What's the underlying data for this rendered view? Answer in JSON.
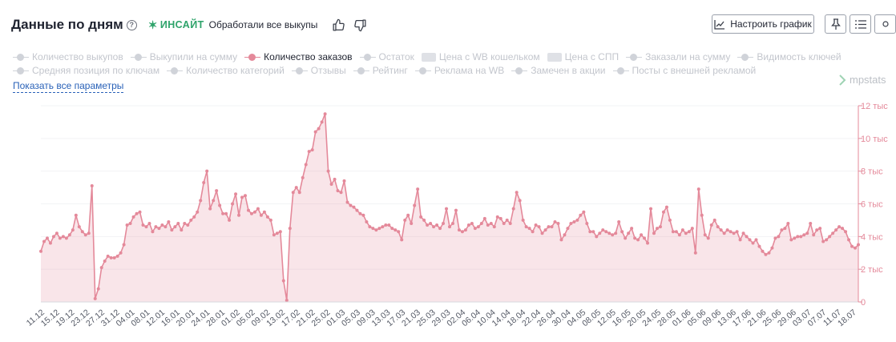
{
  "header": {
    "title": "Данные по дням",
    "help_icon": "?",
    "insight_label": "ИНСАЙТ",
    "insight_text": "Обработали все выкупы"
  },
  "toolbar": {
    "configure_label": "Настроить график"
  },
  "legend": {
    "row1": [
      {
        "label": "Количество выкупов",
        "style": "line",
        "active": false
      },
      {
        "label": "Выкупили на сумму",
        "style": "line",
        "active": false
      },
      {
        "label": "Количество заказов",
        "style": "line",
        "active": true
      },
      {
        "label": "Остаток",
        "style": "line",
        "active": false
      },
      {
        "label": "Цена с WB кошельком",
        "style": "box",
        "active": false
      },
      {
        "label": "Цена с СПП",
        "style": "box",
        "active": false
      },
      {
        "label": "Заказали на сумму",
        "style": "line",
        "active": false
      },
      {
        "label": "Видимость ключей",
        "style": "line",
        "active": false
      }
    ],
    "row2": [
      {
        "label": "Средняя позиция по ключам",
        "style": "line",
        "active": false
      },
      {
        "label": "Количество категорий",
        "style": "line",
        "active": false
      },
      {
        "label": "Отзывы",
        "style": "line",
        "active": false
      },
      {
        "label": "Рейтинг",
        "style": "line",
        "active": false
      },
      {
        "label": "Реклама на WB",
        "style": "line",
        "active": false
      },
      {
        "label": "Замечен в акции",
        "style": "line",
        "active": false
      },
      {
        "label": "Посты с внешней рекламой",
        "style": "line",
        "active": false
      }
    ]
  },
  "show_all_label": "Показать все параметры",
  "watermark": "mpstats",
  "colors": {
    "series": "#e4899a",
    "fill": "rgba(228,137,154,0.22)",
    "axis": "#e4899a",
    "grid": "#f2f3f5",
    "insight": "#2ea36a",
    "link": "#2a62b8"
  },
  "chart_data": {
    "type": "area",
    "series": [
      {
        "name": "Количество заказов"
      }
    ],
    "x_ticks": [
      "11.12",
      "15.12",
      "19.12",
      "23.12",
      "27.12",
      "31.12",
      "04.01",
      "08.01",
      "12.01",
      "16.01",
      "20.01",
      "24.01",
      "28.01",
      "01.02",
      "05.02",
      "09.02",
      "13.02",
      "17.02",
      "21.02",
      "25.02",
      "01.03",
      "05.03",
      "09.03",
      "13.03",
      "17.03",
      "21.03",
      "25.03",
      "29.03",
      "02.04",
      "06.04",
      "10.04",
      "14.04",
      "18.04",
      "22.04",
      "26.04",
      "30.04",
      "04.05",
      "08.05",
      "12.05",
      "16.05",
      "20.05",
      "24.05",
      "28.05",
      "01.06",
      "05.06",
      "09.06",
      "13.06",
      "17.06",
      "21.06",
      "25.06",
      "29.06",
      "03.07",
      "07.07",
      "11.07",
      "18.07"
    ],
    "y_tick_values": [
      0,
      2000,
      4000,
      6000,
      8000,
      10000,
      12000
    ],
    "y_tick_labels": [
      "0",
      "2 тыс",
      "4 тыс",
      "6 тыс",
      "8 тыс",
      "10 тыс",
      "12 тыс"
    ],
    "ylim": [
      0,
      12000
    ],
    "values": [
      3100,
      3700,
      3900,
      3600,
      4000,
      4200,
      3900,
      4000,
      3900,
      4100,
      4400,
      5300,
      4600,
      4300,
      4100,
      4200,
      7100,
      200,
      800,
      2100,
      2500,
      2800,
      2700,
      2700,
      2800,
      3000,
      3500,
      4700,
      4800,
      5200,
      5400,
      5500,
      4700,
      4600,
      4800,
      4300,
      4600,
      4500,
      4700,
      4600,
      4900,
      4400,
      4600,
      4800,
      4400,
      4800,
      4700,
      5000,
      5200,
      5500,
      6200,
      7300,
      8000,
      5700,
      6200,
      6800,
      5900,
      5400,
      5400,
      5000,
      6000,
      6600,
      5300,
      6400,
      6500,
      5600,
      5400,
      5500,
      5700,
      5300,
      5500,
      5200,
      5000,
      4100,
      4200,
      4300,
      1300,
      100,
      4500,
      6700,
      7000,
      6700,
      7600,
      8400,
      9200,
      9300,
      10400,
      10600,
      11000,
      11500,
      8000,
      7200,
      7500,
      6800,
      6700,
      7400,
      6100,
      5900,
      5800,
      5600,
      5400,
      5300,
      4900,
      4600,
      4500,
      4400,
      4500,
      4600,
      4700,
      4700,
      4500,
      4400,
      4300,
      3800,
      5000,
      5300,
      4800,
      5900,
      6900,
      5200,
      5000,
      4700,
      4800,
      4600,
      4700,
      4500,
      4800,
      5700,
      4600,
      4800,
      5600,
      4400,
      4300,
      4400,
      4700,
      4800,
      4500,
      4600,
      4800,
      5100,
      4700,
      4800,
      4600,
      5200,
      5100,
      4800,
      5000,
      4800,
      5700,
      6700,
      6200,
      5000,
      4600,
      4500,
      4300,
      4700,
      4600,
      4200,
      4400,
      4600,
      4600,
      4900,
      4800,
      3800,
      4100,
      4500,
      4800,
      4900,
      5000,
      5300,
      5500,
      4800,
      4300,
      4300,
      4000,
      4200,
      4400,
      4300,
      4200,
      4100,
      4200,
      4900,
      4300,
      3900,
      4200,
      4500,
      3900,
      3800,
      4100,
      3900,
      3600,
      5700,
      4200,
      4500,
      4600,
      5500,
      5800,
      5000,
      4300,
      4300,
      4100,
      4400,
      4200,
      4300,
      4500,
      3000,
      6900,
      5300,
      4100,
      3900,
      4700,
      5000,
      4600,
      4400,
      4200,
      4400,
      4300,
      4200,
      4300,
      3800,
      4200,
      4000,
      3800,
      3600,
      3800,
      3400,
      3100,
      2900,
      3000,
      3300,
      3900,
      4000,
      4400,
      4500,
      4800,
      3800,
      3900,
      4000,
      4000,
      4100,
      4200,
      4800,
      4100,
      4400,
      4500,
      3700,
      3800,
      4000,
      4200,
      4400,
      4600,
      4500,
      4300,
      3800,
      3400,
      3300,
      3500
    ]
  }
}
